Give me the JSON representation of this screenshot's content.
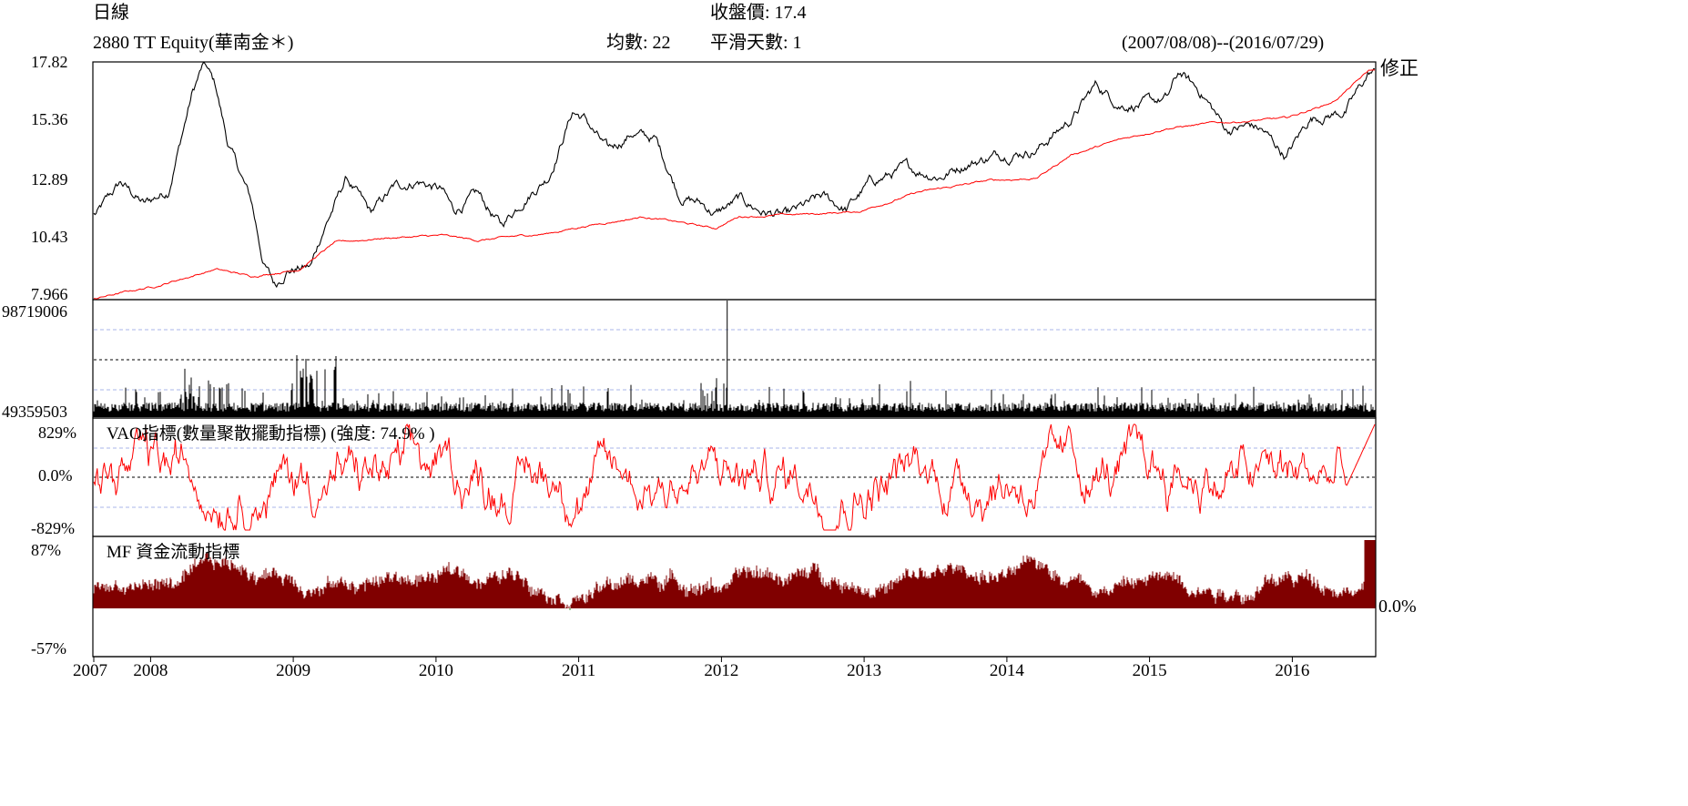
{
  "header": {
    "line_label": "日線",
    "close_label": "收盤價: 17.4",
    "ticker": "2880 TT Equity(華南金＊)",
    "avg_label": "均數: 22",
    "smooth_label": "平滑天數: 1",
    "date_range": "(2007/08/08)--(2016/07/29)",
    "adjusted_label": "修正"
  },
  "price_panel": {
    "y_ticks": [
      "17.82",
      "15.36",
      "12.89",
      "10.43",
      "7.966"
    ],
    "price_color": "#000000",
    "ma_color": "#ff0000"
  },
  "volume_panel": {
    "y_ticks": [
      "98719006",
      "49359503"
    ],
    "bar_color": "#000000"
  },
  "vao_panel": {
    "title": "VAO指標(數量聚散擺動指標) (強度: 74.9% )",
    "y_ticks": [
      "829%",
      "0.0%",
      "-829%"
    ],
    "line_color": "#ff0000"
  },
  "mf_panel": {
    "title": "MF 資金流動指標",
    "y_ticks": [
      "87%",
      "-57%"
    ],
    "zero_label": "0.0%",
    "pos_color": "#800000",
    "neg_color": "#008000"
  },
  "x_axis": {
    "labels": [
      "2007",
      "2008",
      "2009",
      "2010",
      "2011",
      "2012",
      "2013",
      "2014",
      "2015",
      "2016"
    ]
  },
  "chart_data": {
    "type": "line",
    "x_range": [
      "2007/08/08",
      "2016/07/29"
    ],
    "price": {
      "name": "2880 TT Equity(華南金＊)",
      "ylim": [
        7.966,
        17.82
      ],
      "points": [
        [
          "2007-08",
          11.5
        ],
        [
          "2007-10",
          12.8
        ],
        [
          "2007-12",
          11.9
        ],
        [
          "2008-02",
          12.5
        ],
        [
          "2008-04",
          16.5
        ],
        [
          "2008-05",
          17.8
        ],
        [
          "2008-06",
          16.8
        ],
        [
          "2008-07",
          14.5
        ],
        [
          "2008-09",
          12.0
        ],
        [
          "2008-10",
          9.5
        ],
        [
          "2008-11",
          8.5
        ],
        [
          "2008-12",
          9.2
        ],
        [
          "2009-02",
          9.3
        ],
        [
          "2009-03",
          10.8
        ],
        [
          "2009-05",
          13.0
        ],
        [
          "2009-07",
          11.5
        ],
        [
          "2009-09",
          12.6
        ],
        [
          "2009-11",
          12.9
        ],
        [
          "2010-01",
          12.5
        ],
        [
          "2010-02",
          11.6
        ],
        [
          "2010-04",
          12.3
        ],
        [
          "2010-06",
          11.0
        ],
        [
          "2010-08",
          12.2
        ],
        [
          "2010-10",
          13.1
        ],
        [
          "2010-12",
          15.8
        ],
        [
          "2011-01",
          15.5
        ],
        [
          "2011-03",
          14.1
        ],
        [
          "2011-05",
          14.9
        ],
        [
          "2011-07",
          14.6
        ],
        [
          "2011-09",
          12.3
        ],
        [
          "2011-11",
          11.9
        ],
        [
          "2011-12",
          11.5
        ],
        [
          "2012-02",
          12.1
        ],
        [
          "2012-04",
          11.6
        ],
        [
          "2012-06",
          11.4
        ],
        [
          "2012-09",
          12.2
        ],
        [
          "2012-11",
          11.7
        ],
        [
          "2013-01",
          12.8
        ],
        [
          "2013-04",
          13.4
        ],
        [
          "2013-07",
          13.1
        ],
        [
          "2013-09",
          13.6
        ],
        [
          "2013-12",
          14.0
        ],
        [
          "2014-03",
          14.2
        ],
        [
          "2014-06",
          15.5
        ],
        [
          "2014-08",
          16.9
        ],
        [
          "2014-10",
          16.1
        ],
        [
          "2014-12",
          16.1
        ],
        [
          "2015-02",
          16.3
        ],
        [
          "2015-03",
          17.4
        ],
        [
          "2015-05",
          16.5
        ],
        [
          "2015-07",
          15.0
        ],
        [
          "2015-09",
          15.2
        ],
        [
          "2015-10",
          15.0
        ],
        [
          "2015-12",
          13.9
        ],
        [
          "2016-02",
          15.5
        ],
        [
          "2016-05",
          15.8
        ],
        [
          "2016-07",
          17.4
        ]
      ]
    },
    "moving_average": {
      "points": [
        [
          "2007-08",
          8.0
        ],
        [
          "2008-01",
          8.5
        ],
        [
          "2008-06",
          9.2
        ],
        [
          "2008-09",
          8.9
        ],
        [
          "2009-01",
          9.2
        ],
        [
          "2009-04",
          10.3
        ],
        [
          "2009-08",
          10.5
        ],
        [
          "2010-01",
          10.6
        ],
        [
          "2010-04",
          10.4
        ],
        [
          "2010-10",
          10.7
        ],
        [
          "2011-01",
          11.0
        ],
        [
          "2011-06",
          11.4
        ],
        [
          "2011-12",
          10.9
        ],
        [
          "2012-02",
          11.4
        ],
        [
          "2012-08",
          11.5
        ],
        [
          "2012-12",
          11.6
        ],
        [
          "2013-05",
          12.4
        ],
        [
          "2013-11",
          12.9
        ],
        [
          "2014-03",
          13.0
        ],
        [
          "2014-06",
          14.0
        ],
        [
          "2014-10",
          14.6
        ],
        [
          "2015-02",
          15.1
        ],
        [
          "2015-06",
          15.3
        ],
        [
          "2015-12",
          15.5
        ],
        [
          "2016-04",
          16.2
        ],
        [
          "2016-07",
          17.5
        ]
      ]
    },
    "volume": {
      "max": 98719006,
      "mid": 49359503,
      "note_peak": "2012-01"
    },
    "vao": {
      "ylim": [
        -829,
        829
      ],
      "unit": "%",
      "strength": 74.9,
      "last": 829
    },
    "mf": {
      "ylim": [
        -57,
        87
      ],
      "unit": "%",
      "last": 87
    }
  }
}
